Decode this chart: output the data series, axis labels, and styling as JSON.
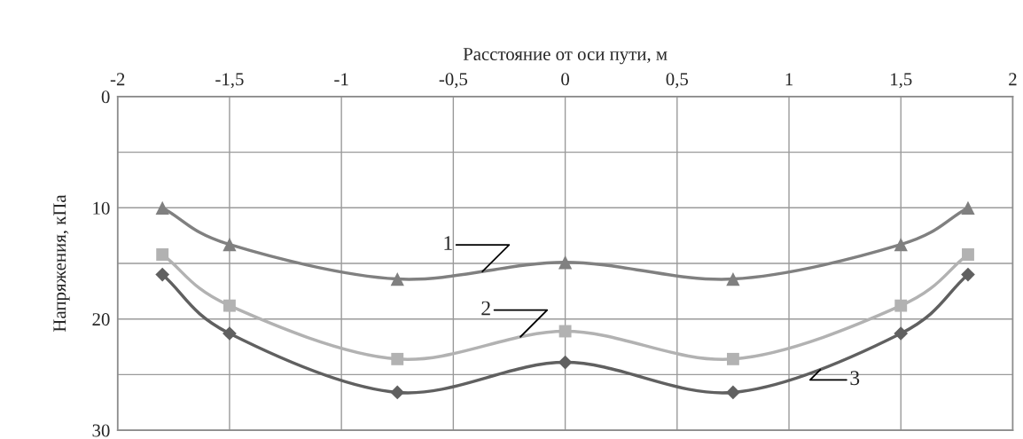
{
  "chart_data": {
    "type": "line",
    "xlabel": "Расстояние от оси пути, м",
    "ylabel": "Напряжения, кПа",
    "x": [
      -1.8,
      -1.5,
      -0.75,
      0,
      0.75,
      1.5,
      1.8
    ],
    "series": [
      {
        "name": "1",
        "color": "#808080",
        "marker": "triangle",
        "values": [
          10.0,
          13.3,
          16.4,
          14.9,
          16.4,
          13.3,
          10.0
        ]
      },
      {
        "name": "2",
        "color": "#b2b2b2",
        "marker": "square",
        "values": [
          14.2,
          18.8,
          23.6,
          21.1,
          23.6,
          18.8,
          14.2
        ]
      },
      {
        "name": "3",
        "color": "#606060",
        "marker": "diamond",
        "values": [
          16.0,
          21.3,
          26.6,
          23.9,
          26.6,
          21.3,
          16.0
        ]
      }
    ],
    "xlim": [
      -2,
      2
    ],
    "xticks": [
      -2,
      {
        "value": -1.5,
        "label": "-1,5"
      },
      -1,
      {
        "value": -0.5,
        "label": "-0,5"
      },
      0,
      {
        "value": 0.5,
        "label": "0,5"
      },
      1,
      {
        "value": 1.5,
        "label": "1,5"
      },
      2
    ],
    "ylim": [
      30,
      0
    ],
    "yticks": [
      0,
      {
        "value": 5,
        "label": null
      },
      10,
      {
        "value": 15,
        "label": null
      },
      20,
      {
        "value": 25,
        "label": null
      },
      30
    ],
    "grid": true,
    "legend": false,
    "line_style": "solid"
  }
}
